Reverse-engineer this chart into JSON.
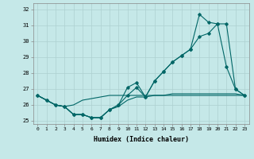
{
  "xlabel": "Humidex (Indice chaleur)",
  "background_color": "#c5e8e8",
  "grid_color": "#aed0d0",
  "line_color": "#006666",
  "xlim": [
    -0.5,
    23.5
  ],
  "ylim": [
    24.8,
    32.4
  ],
  "yticks": [
    25,
    26,
    27,
    28,
    29,
    30,
    31,
    32
  ],
  "xticks": [
    0,
    1,
    2,
    3,
    4,
    5,
    6,
    7,
    8,
    9,
    10,
    11,
    12,
    13,
    14,
    15,
    16,
    17,
    18,
    19,
    20,
    21,
    22,
    23
  ],
  "series": [
    {
      "y": [
        26.6,
        26.3,
        26.0,
        25.9,
        25.4,
        25.4,
        25.2,
        25.2,
        25.7,
        25.9,
        26.3,
        26.5,
        26.5,
        26.6,
        26.6,
        26.6,
        26.6,
        26.6,
        26.6,
        26.6,
        26.6,
        26.6,
        26.6,
        26.6
      ],
      "marker": false
    },
    {
      "y": [
        26.6,
        26.3,
        26.0,
        25.9,
        26.0,
        26.3,
        26.4,
        26.5,
        26.6,
        26.6,
        26.6,
        26.6,
        26.6,
        26.6,
        26.6,
        26.7,
        26.7,
        26.7,
        26.7,
        26.7,
        26.7,
        26.7,
        26.7,
        26.6
      ],
      "marker": false
    },
    {
      "y": [
        26.6,
        26.3,
        26.0,
        25.9,
        25.4,
        25.4,
        25.2,
        25.2,
        25.7,
        26.0,
        27.1,
        27.4,
        26.5,
        27.5,
        28.1,
        28.7,
        29.1,
        29.5,
        30.3,
        30.5,
        31.1,
        31.1,
        27.0,
        26.6
      ],
      "marker": true
    },
    {
      "y": [
        26.6,
        26.3,
        26.0,
        25.9,
        25.4,
        25.4,
        25.2,
        25.2,
        25.7,
        26.0,
        26.6,
        27.1,
        26.5,
        27.5,
        28.1,
        28.7,
        29.1,
        29.5,
        31.7,
        31.2,
        31.1,
        28.4,
        27.0,
        26.6
      ],
      "marker": true
    }
  ]
}
